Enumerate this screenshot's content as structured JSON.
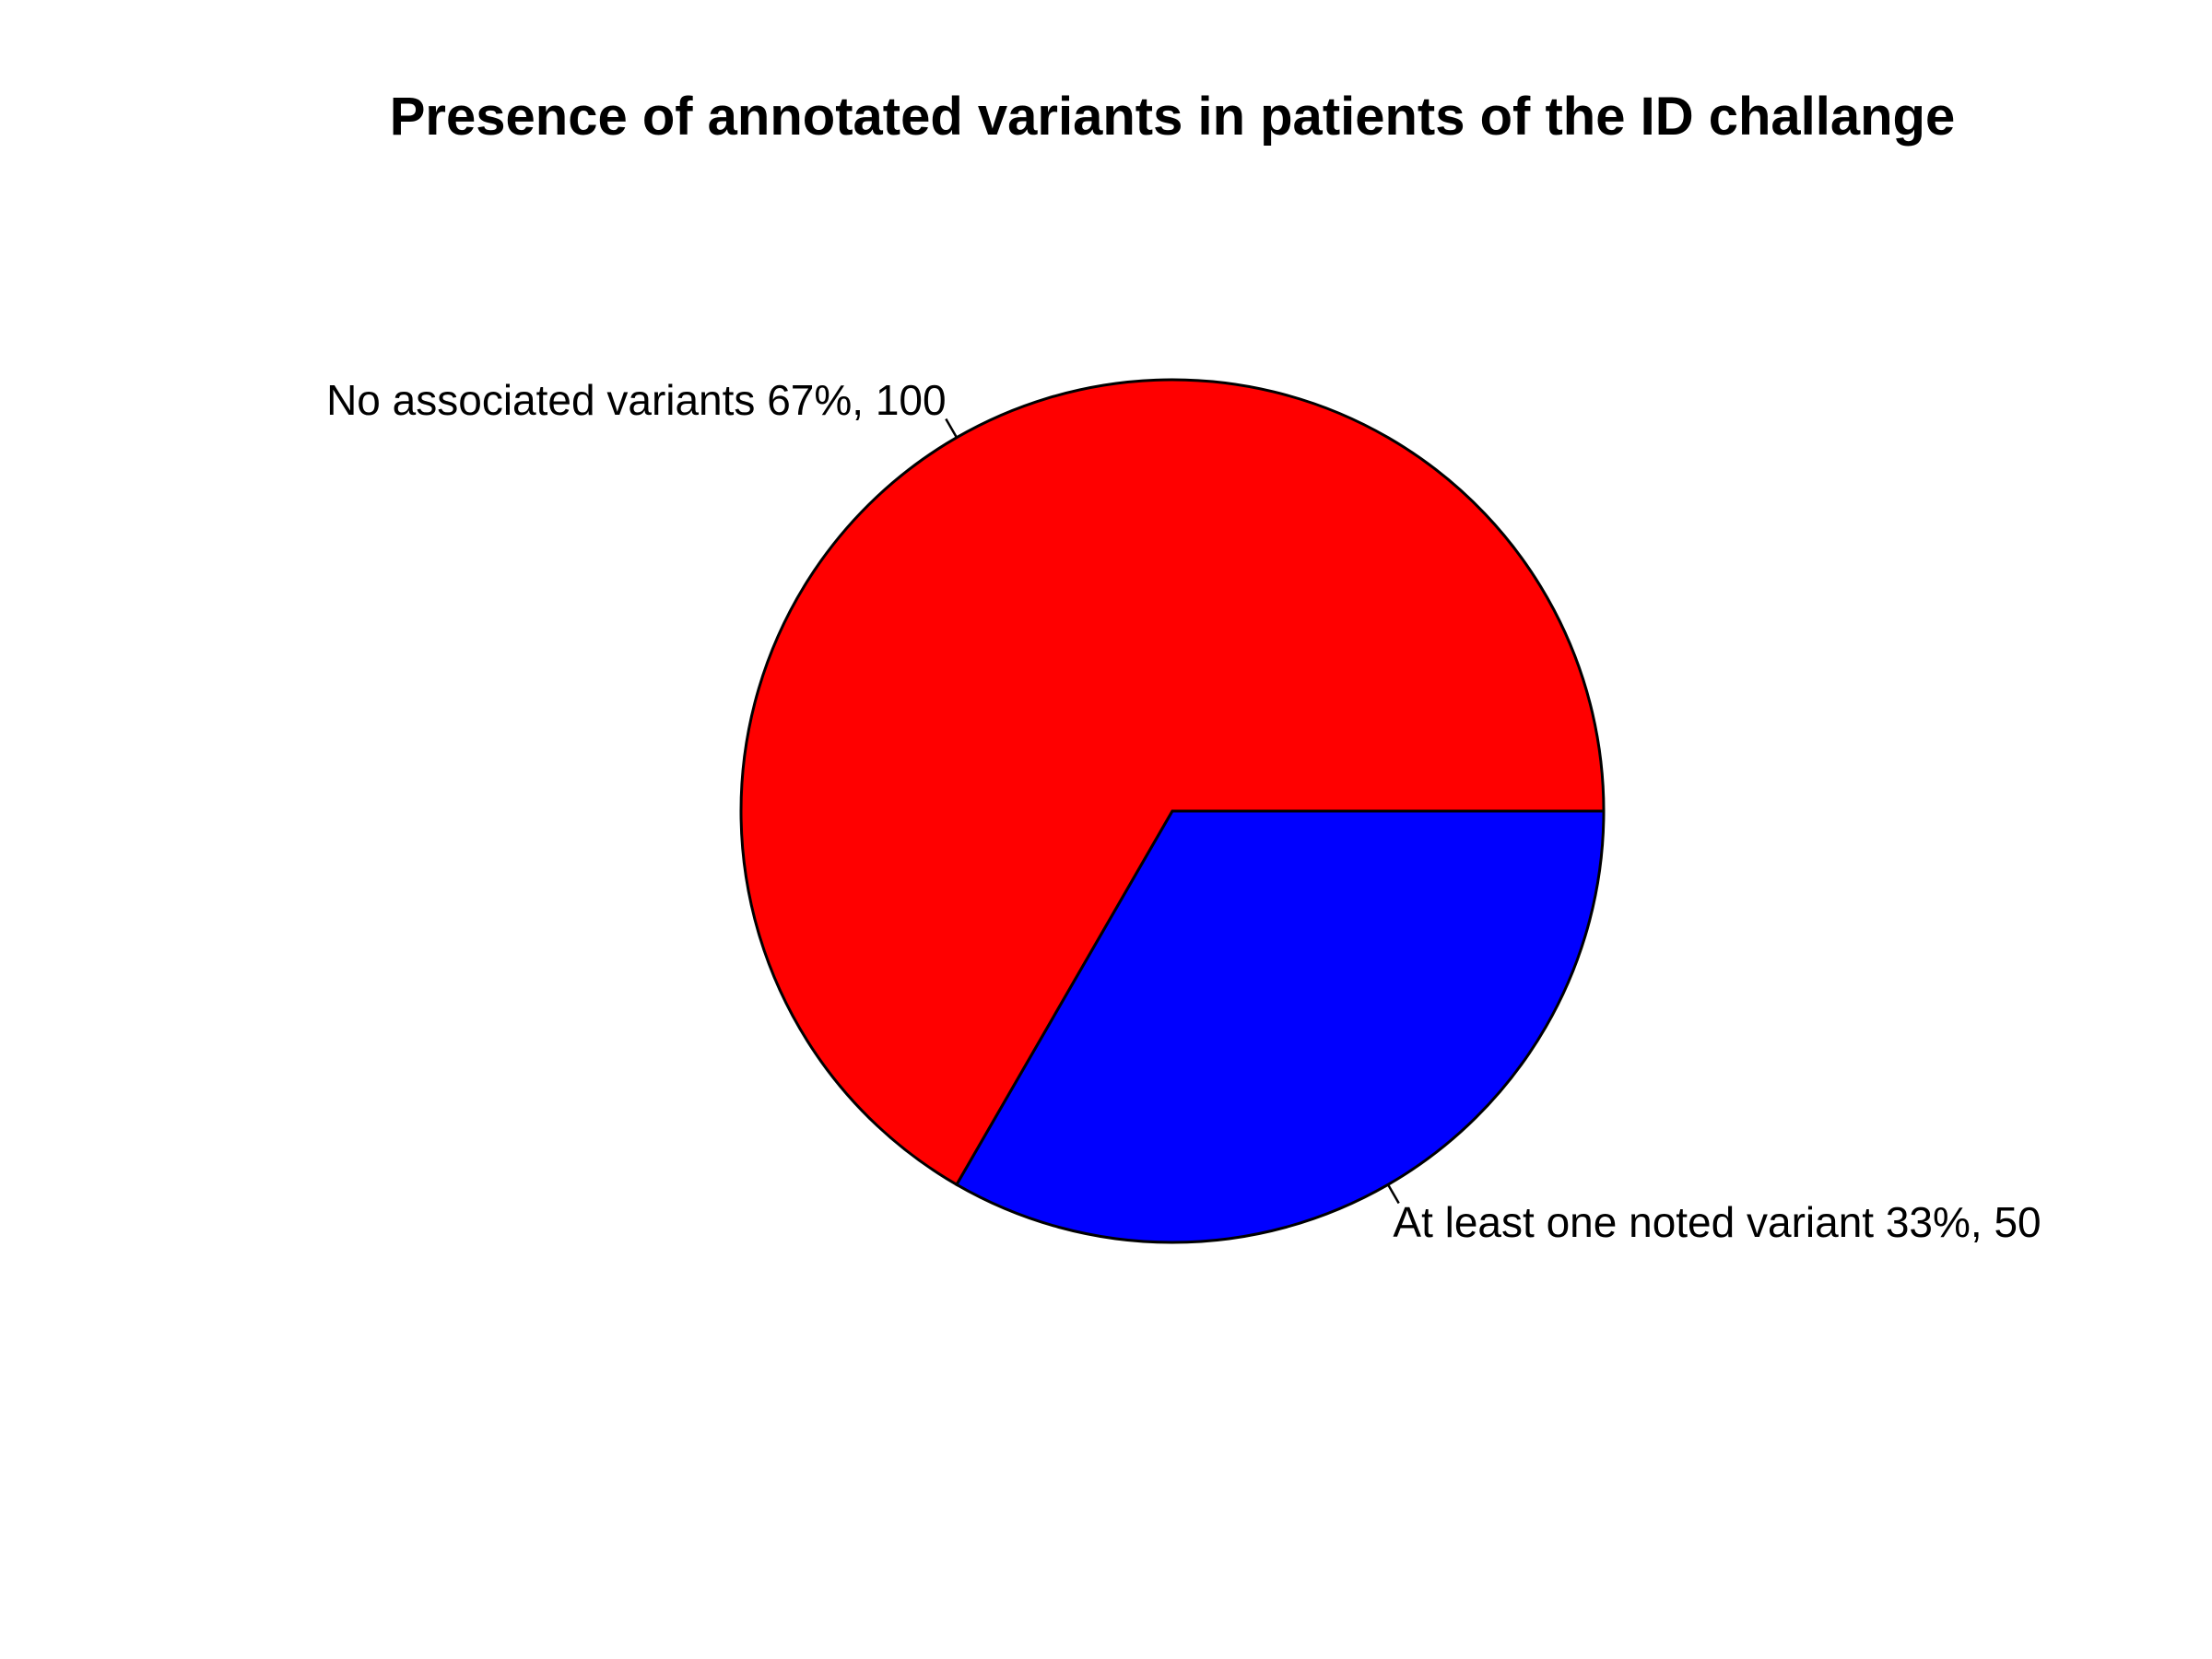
{
  "chart_data": {
    "type": "pie",
    "title": "Presence of annotated variants in patients of the ID challange",
    "slices": [
      {
        "label": "No associated variants 67%, 100",
        "value": 100,
        "percent": 67,
        "color": "#ff0000"
      },
      {
        "label": "At least one noted variant 33%, 50",
        "value": 50,
        "percent": 33,
        "color": "#0000ff"
      }
    ],
    "start_angle_deg": 0,
    "direction": "counterclockwise",
    "outline_color": "#000000",
    "legend": "none"
  }
}
